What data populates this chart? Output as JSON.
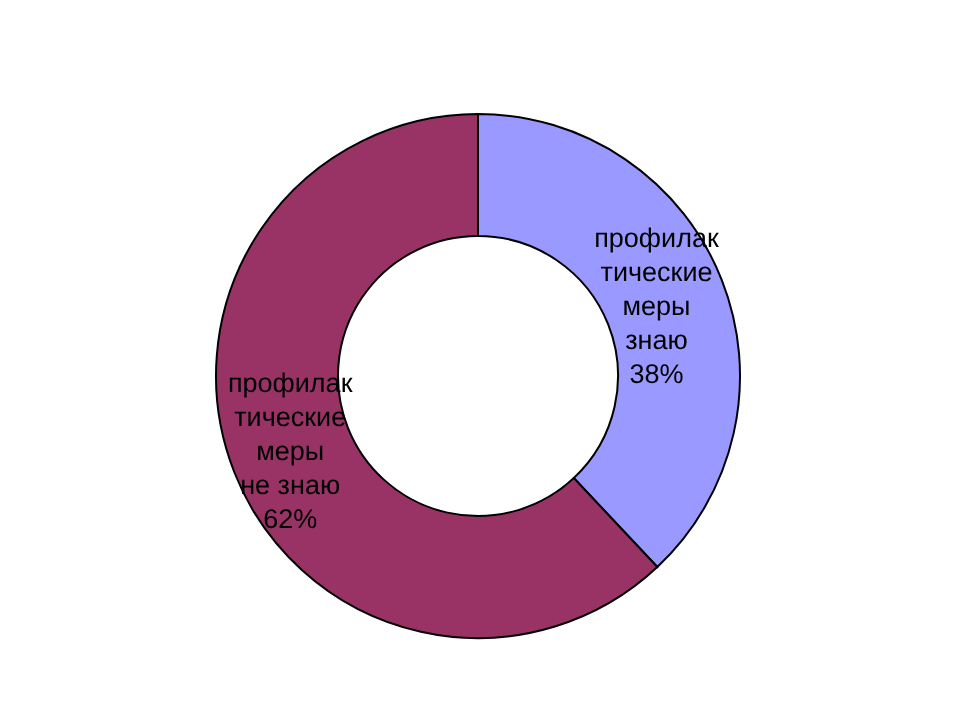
{
  "chart_data": {
    "type": "donut",
    "categories": [
      "профилактические меры знаю",
      "профилактические меры не знаю"
    ],
    "values": [
      38,
      62
    ],
    "value_labels": [
      "38%",
      "62%"
    ],
    "colors": [
      "#9999ff",
      "#993366"
    ]
  }
}
